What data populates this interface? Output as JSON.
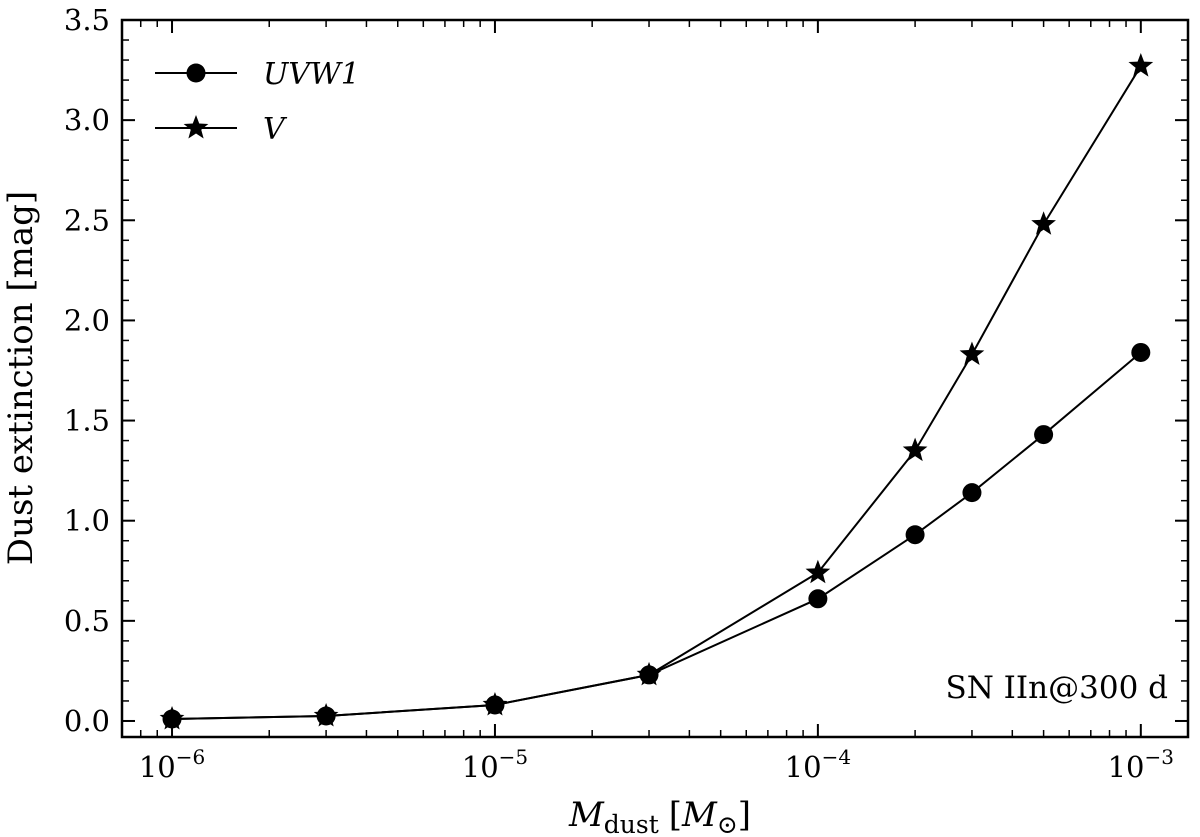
{
  "chart_data": {
    "type": "line",
    "title": "",
    "xlabel": "M_dust [M_⊙]",
    "xlabel_parts": {
      "symbol": "M",
      "subscript": "dust",
      "unit_open": "[",
      "unit_symbol": "M",
      "unit_sub": "⊙",
      "unit_close": "]"
    },
    "ylabel": "Dust extinction [mag]",
    "xscale": "log",
    "xlim": [
      7e-07,
      0.0014
    ],
    "ylim": [
      -0.08,
      3.5
    ],
    "xticks": [
      {
        "value": 1e-06,
        "base": "10",
        "exp": "−6"
      },
      {
        "value": 1e-05,
        "base": "10",
        "exp": "−5"
      },
      {
        "value": 0.0001,
        "base": "10",
        "exp": "−4"
      },
      {
        "value": 0.001,
        "base": "10",
        "exp": "−3"
      }
    ],
    "yticks": [
      0.0,
      0.5,
      1.0,
      1.5,
      2.0,
      2.5,
      3.0,
      3.5
    ],
    "ytick_labels": [
      "0.0",
      "0.5",
      "1.0",
      "1.5",
      "2.0",
      "2.5",
      "3.0",
      "3.5"
    ],
    "x": [
      1e-06,
      3e-06,
      1e-05,
      3e-05,
      0.0001,
      0.0002,
      0.0003,
      0.0005,
      0.001
    ],
    "series": [
      {
        "name": "UVW1",
        "marker": "circle",
        "values": [
          0.01,
          0.025,
          0.08,
          0.23,
          0.61,
          0.93,
          1.14,
          1.43,
          1.84
        ]
      },
      {
        "name": "V",
        "marker": "star",
        "values": [
          0.01,
          0.025,
          0.08,
          0.23,
          0.74,
          1.35,
          1.83,
          2.48,
          3.27
        ]
      }
    ],
    "legend_position": "top-left",
    "annotation": "SN IIn@300 d",
    "annotation_position": "bottom-right",
    "grid": false,
    "colors": {
      "line": "#000000",
      "marker": "#000000",
      "background": "#ffffff"
    }
  }
}
